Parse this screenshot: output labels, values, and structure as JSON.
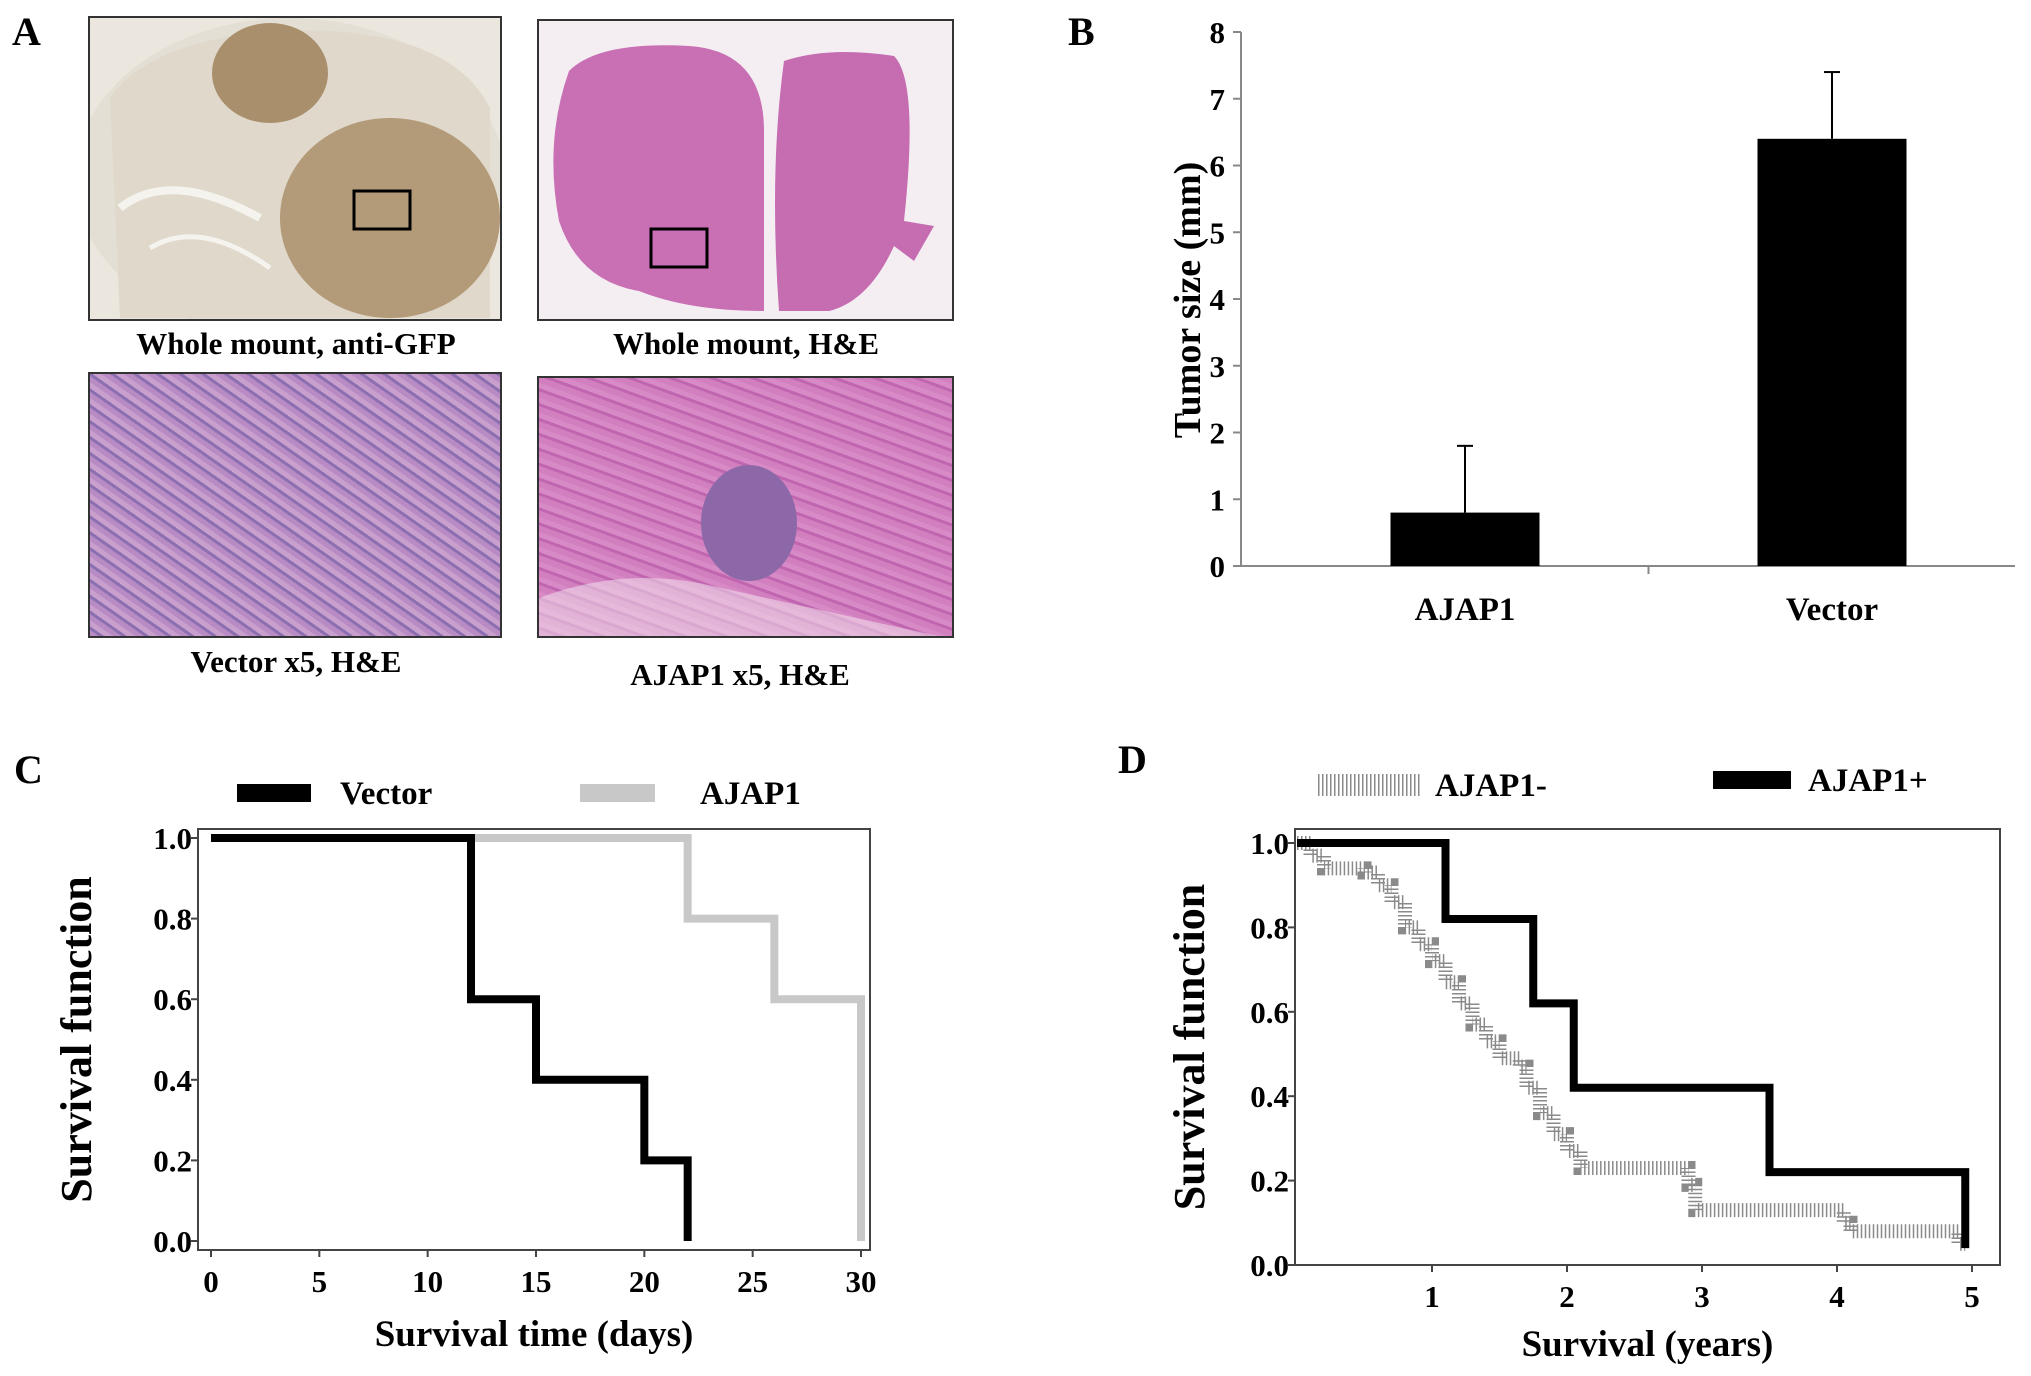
{
  "panel_labels": {
    "a": "A",
    "b": "B",
    "c": "C",
    "d": "D"
  },
  "panel_a": {
    "captions": [
      "Whole mount, anti-GFP",
      "Whole mount, H&E",
      "Vector  x5, H&E",
      "AJAP1 x5, H&E"
    ]
  },
  "colors": {
    "black": "#000000",
    "ajap1_gray": "#c8c8c8",
    "hatched_gray": "#8a8a8a",
    "brown_stain": "#b39a78",
    "he_pink": "#c96fb4"
  },
  "chart_data": [
    {
      "panel": "B",
      "type": "bar",
      "categories": [
        "AJAP1",
        "Vector"
      ],
      "values": [
        0.8,
        6.4
      ],
      "error_upper": [
        1.8,
        7.4
      ],
      "ylabel": "Tumor size (mm)",
      "xlabel": "",
      "ylim": [
        0,
        8
      ],
      "yticks": [
        0,
        1,
        2,
        3,
        4,
        5,
        6,
        7,
        8
      ],
      "grid": false
    },
    {
      "panel": "C",
      "type": "line",
      "step": true,
      "xlabel": "Survival time (days)",
      "ylabel": "Survival function",
      "xlim": [
        0,
        30
      ],
      "ylim": [
        0,
        1
      ],
      "xticks": [
        0,
        5,
        10,
        15,
        20,
        25,
        30
      ],
      "yticks": [
        "0.0",
        "0.2",
        "0.4",
        "0.6",
        "0.8",
        "1.0"
      ],
      "legend_position": "top",
      "series": [
        {
          "name": "Vector",
          "color": "#000000",
          "points": [
            [
              0,
              1.0
            ],
            [
              12,
              0.6
            ],
            [
              15,
              0.4
            ],
            [
              20,
              0.2
            ],
            [
              22,
              0.0
            ]
          ]
        },
        {
          "name": "AJAP1",
          "color": "#c8c8c8",
          "points": [
            [
              0,
              1.0
            ],
            [
              22,
              0.8
            ],
            [
              26,
              0.6
            ],
            [
              30,
              0.0
            ]
          ]
        }
      ]
    },
    {
      "panel": "D",
      "type": "line",
      "step": true,
      "xlabel": "Survival (years)",
      "ylabel": "Survival function",
      "xlim": [
        0,
        5
      ],
      "ylim": [
        0,
        1
      ],
      "xticks": [
        1,
        2,
        3,
        4,
        5
      ],
      "yticks": [
        "0.0",
        "0.2",
        "0.4",
        "0.6",
        "0.8",
        "1.0"
      ],
      "legend_position": "top",
      "series": [
        {
          "name": "AJAP1-",
          "color": "#8a8a8a",
          "style": "hatched",
          "points": [
            [
              0,
              1.0
            ],
            [
              0.1,
              0.97
            ],
            [
              0.2,
              0.94
            ],
            [
              0.5,
              0.93
            ],
            [
              0.6,
              0.9
            ],
            [
              0.7,
              0.86
            ],
            [
              0.8,
              0.8
            ],
            [
              0.9,
              0.76
            ],
            [
              1.0,
              0.72
            ],
            [
              1.1,
              0.67
            ],
            [
              1.2,
              0.62
            ],
            [
              1.3,
              0.57
            ],
            [
              1.4,
              0.53
            ],
            [
              1.5,
              0.49
            ],
            [
              1.65,
              0.47
            ],
            [
              1.7,
              0.42
            ],
            [
              1.8,
              0.36
            ],
            [
              1.9,
              0.31
            ],
            [
              2.0,
              0.27
            ],
            [
              2.1,
              0.23
            ],
            [
              2.9,
              0.19
            ],
            [
              2.95,
              0.13
            ],
            [
              4.05,
              0.1
            ],
            [
              4.1,
              0.08
            ],
            [
              4.9,
              0.05
            ],
            [
              4.95,
              0.05
            ]
          ]
        },
        {
          "name": "AJAP1+",
          "color": "#000000",
          "style": "solid",
          "points": [
            [
              0,
              1.0
            ],
            [
              1.1,
              0.82
            ],
            [
              1.75,
              0.62
            ],
            [
              2.05,
              0.42
            ],
            [
              3.5,
              0.22
            ],
            [
              4.95,
              0.04
            ]
          ]
        }
      ]
    }
  ]
}
